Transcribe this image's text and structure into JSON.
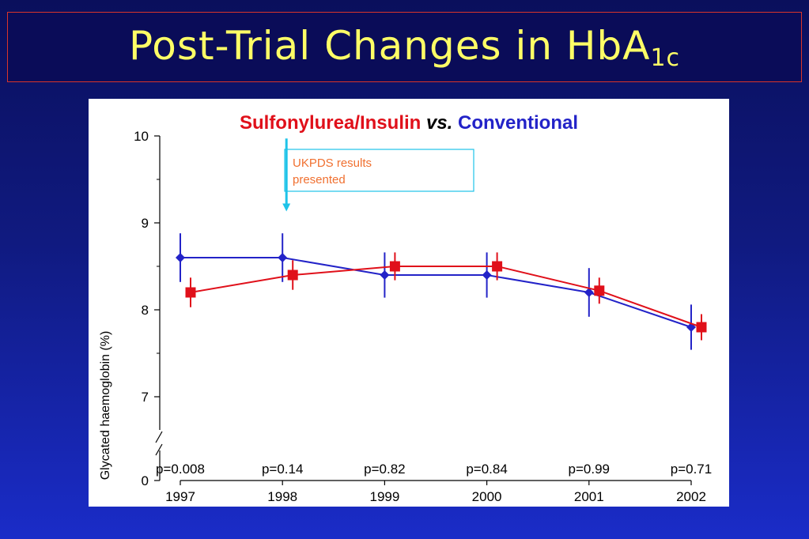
{
  "slide": {
    "title_main": "Post-Trial Changes in HbA",
    "title_sub": "1c"
  },
  "colors": {
    "background_top": "#0a0f5c",
    "background_bottom": "#1a2cc8",
    "title_text": "#ffff66",
    "title_border": "#d9342b",
    "sulfonylurea_insulin": "#e0101a",
    "conventional": "#2323c8",
    "annotation": "#1ec3e8",
    "annotation_text": "#f07030"
  },
  "chart_data": {
    "type": "line",
    "heading_part1": "Sulfonylurea/Insulin",
    "heading_vs": "vs.",
    "heading_part2": "Conventional",
    "ylabel": "Glycated haemoglobin (%)",
    "xlabel": "",
    "ylim": [
      6.5,
      10
    ],
    "y_ticks": [
      7,
      8,
      9,
      10
    ],
    "y_zero_tick": "0",
    "axis_break": true,
    "grid": false,
    "categories": [
      "1997",
      "1998",
      "1999",
      "2000",
      "2001",
      "2002"
    ],
    "p_values": [
      "p=0.008",
      "p=0.14",
      "p=0.82",
      "p=0.84",
      "p=0.99",
      "p=0.71"
    ],
    "series": [
      {
        "name": "Conventional",
        "marker": "diamond",
        "color": "#2323c8",
        "values": [
          8.6,
          8.6,
          8.4,
          8.4,
          8.2,
          7.8
        ],
        "error": [
          0.28,
          0.28,
          0.26,
          0.26,
          0.28,
          0.26
        ]
      },
      {
        "name": "Sulfonylurea/Insulin",
        "marker": "square",
        "color": "#e0101a",
        "values": [
          8.2,
          8.4,
          8.5,
          8.5,
          8.22,
          7.8
        ],
        "error": [
          0.17,
          0.17,
          0.16,
          0.16,
          0.15,
          0.15
        ]
      }
    ],
    "annotation": {
      "line1": "UKPDS results",
      "line2": "presented",
      "at_year": "1998",
      "arrow_from": 9.97,
      "arrow_to": 9.15
    }
  }
}
